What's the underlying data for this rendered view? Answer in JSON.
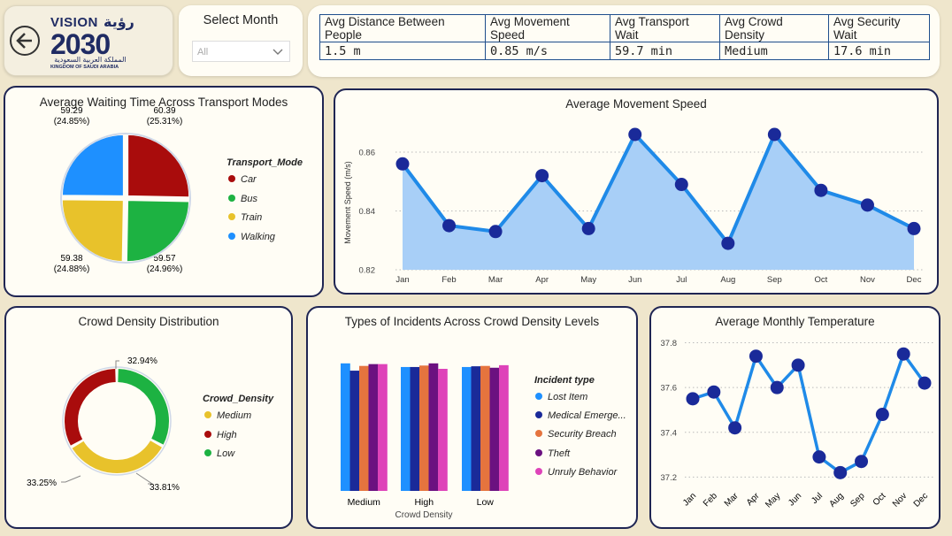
{
  "header": {
    "logo_vision": "VISION",
    "logo_arabic_word": "رؤية",
    "logo_year": "2030",
    "logo_arabic_kingdom": "المملكة العربية السعودية",
    "logo_kingdom": "KINGDOM OF SAUDI ARABIA"
  },
  "filter": {
    "title": "Select Month",
    "value": "All"
  },
  "kpis": {
    "headers": [
      "Avg Distance Between People",
      "Avg Movement Speed",
      "Avg Transport Wait",
      "Avg Crowd Density",
      "Avg Security Wait"
    ],
    "values": [
      "1.5 m",
      "0.85 m/s",
      "59.7 min",
      "Medium",
      "17.6 min"
    ]
  },
  "colors": {
    "dark_red": "#a90c0c",
    "green": "#1db242",
    "yellow": "#e8c22b",
    "blue": "#1e90ff",
    "navy": "#1a2a99",
    "orange": "#e5743e",
    "purple": "#6b1180",
    "pink": "#de43b9",
    "area_fill": "#a8cff7",
    "line": "#1f8ae8",
    "marker": "#1a2a99"
  },
  "charts": {
    "transport": {
      "title": "Average Waiting Time Across Transport Modes",
      "legend_title": "Transport_Mode",
      "labels": [
        "60.39\n(25.31%)",
        "59.57\n(24.96%)",
        "59.38\n(24.88%)",
        "59.29\n(24.85%)"
      ]
    },
    "speed": {
      "title": "Average Movement Speed"
    },
    "density": {
      "title": "Crowd Density Distribution",
      "legend_title": "Crowd_Density"
    },
    "incidents": {
      "title": "Types of Incidents Across Crowd Density Levels",
      "legend_title": "Incident type",
      "legend_labels": [
        "Lost Item",
        "Medical Emerge...",
        "Security Breach",
        "Theft",
        "Unruly Behavior"
      ]
    },
    "temperature": {
      "title": "Average Monthly Temperature"
    }
  },
  "chart_data": [
    {
      "type": "pie",
      "categories": [
        "Car",
        "Bus",
        "Train",
        "Walking"
      ],
      "values": [
        60.39,
        59.57,
        59.38,
        59.29
      ],
      "percents": [
        25.31,
        24.96,
        24.88,
        24.85
      ],
      "legend": "right"
    },
    {
      "type": "area",
      "categories": [
        "Jan",
        "Feb",
        "Mar",
        "Apr",
        "May",
        "Jun",
        "Jul",
        "Aug",
        "Sep",
        "Oct",
        "Nov",
        "Dec"
      ],
      "values": [
        0.856,
        0.835,
        0.833,
        0.852,
        0.834,
        0.866,
        0.849,
        0.829,
        0.866,
        0.847,
        0.842,
        0.834
      ],
      "ylabel": "Movement Speed (m/s)",
      "ylim": [
        0.82,
        0.866
      ],
      "yticks": [
        0.82,
        0.84,
        0.86
      ],
      "grid": true
    },
    {
      "type": "pie",
      "subtype": "donut",
      "categories": [
        "Medium",
        "High",
        "Low"
      ],
      "values": [
        33.81,
        33.25,
        32.94
      ],
      "labels": [
        "33.81%",
        "33.25%",
        "32.94%"
      ],
      "legend": "right"
    },
    {
      "type": "bar",
      "categories": [
        "Medium",
        "High",
        "Low"
      ],
      "xlabel": "Crowd Density",
      "series": [
        {
          "name": "Lost Item",
          "values": [
            35,
            34,
            34
          ]
        },
        {
          "name": "Medical Emerge...",
          "values": [
            33,
            34,
            34.2
          ]
        },
        {
          "name": "Security Breach",
          "values": [
            34.3,
            34.4,
            34.3
          ]
        },
        {
          "name": "Theft",
          "values": [
            34.8,
            35,
            33.8
          ]
        },
        {
          "name": "Unruly Behavior",
          "values": [
            34.8,
            33.5,
            34.5
          ]
        }
      ],
      "legend": "right"
    },
    {
      "type": "line",
      "categories": [
        "Jan",
        "Feb",
        "Mar",
        "Apr",
        "May",
        "Jun",
        "Jul",
        "Aug",
        "Sep",
        "Oct",
        "Nov",
        "Dec"
      ],
      "values": [
        37.55,
        37.58,
        37.42,
        37.74,
        37.6,
        37.7,
        37.29,
        37.22,
        37.27,
        37.48,
        37.75,
        37.62
      ],
      "ylim": [
        37.17,
        37.81
      ],
      "yticks": [
        37.2,
        37.4,
        37.6,
        37.8
      ],
      "grid": true
    }
  ]
}
